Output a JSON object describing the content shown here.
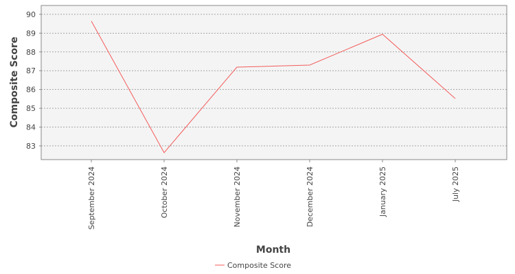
{
  "chart_data": {
    "type": "line",
    "x_label": "Month",
    "y_label": "Composite Score",
    "categories": [
      "September 2024",
      "October 2024",
      "November 2024",
      "December 2024",
      "January 2025",
      "July 2025"
    ],
    "series": [
      {
        "name": "Composite Score",
        "color": "#f45b5b",
        "values": [
          89.64,
          82.64,
          87.19,
          87.3,
          88.94,
          85.52
        ]
      }
    ],
    "ylim": [
      82.27,
      90.47
    ],
    "yticks": [
      83,
      84,
      85,
      86,
      87,
      88,
      89,
      90
    ],
    "grid": true,
    "legend": "bottom"
  }
}
